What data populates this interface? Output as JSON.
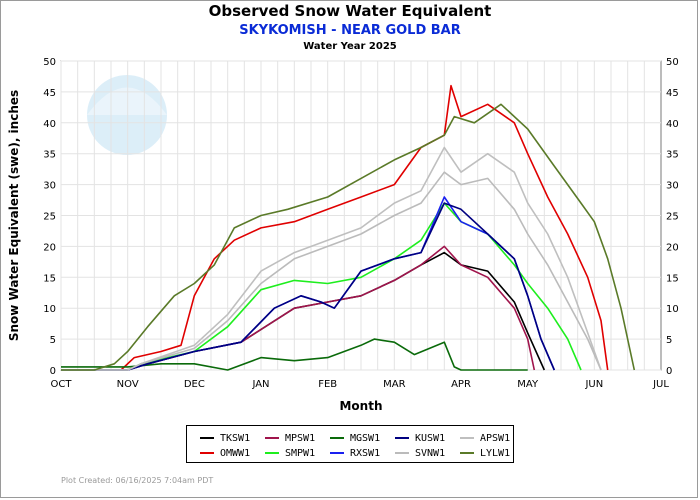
{
  "chart_data": {
    "type": "line",
    "title": "Observed Snow Water Equivalent",
    "subtitle": "SKYKOMISH - NEAR GOLD BAR",
    "subtitle2": "Water Year 2025",
    "xlabel": "Month",
    "ylabel": "Snow Water Equivalent (swe),  inches",
    "categories": [
      "OCT",
      "NOV",
      "DEC",
      "JAN",
      "FEB",
      "MAR",
      "APR",
      "MAY",
      "JUN",
      "JUL"
    ],
    "ylim": [
      0,
      50
    ],
    "yticks": [
      0,
      5,
      10,
      15,
      20,
      25,
      30,
      35,
      40,
      45,
      50
    ],
    "grid": true,
    "legend_position": "bottom",
    "series": [
      {
        "name": "TKSW1",
        "color": "#000000",
        "x": [
          0,
          1,
          1.3,
          2,
          2.7,
          3.5,
          4,
          4.5,
          5,
          5.4,
          5.75,
          6,
          6.4,
          6.8,
          7,
          7.25
        ],
        "y": [
          0,
          0,
          1,
          3,
          4.5,
          10,
          11,
          12,
          14.5,
          17,
          19,
          17,
          16,
          11,
          6,
          0
        ]
      },
      {
        "name": "OMWW1",
        "color": "#e00000",
        "x": [
          0,
          0.9,
          1.1,
          1.5,
          1.8,
          2,
          2.3,
          2.6,
          3,
          3.5,
          4,
          4.5,
          5,
          5.4,
          5.75,
          5.85,
          6,
          6.4,
          6.8,
          7,
          7.3,
          7.6,
          7.9,
          8.1,
          8.2
        ],
        "y": [
          0,
          0,
          2,
          3,
          4,
          12,
          18,
          21,
          23,
          24,
          26,
          28,
          30,
          36,
          38,
          46,
          41,
          43,
          40,
          35,
          28,
          22,
          15,
          8,
          0
        ]
      },
      {
        "name": "MPSW1",
        "color": "#a0144c",
        "x": [
          0,
          1,
          1.3,
          2,
          2.7,
          3.5,
          4,
          4.5,
          5,
          5.4,
          5.75,
          6,
          6.4,
          6.8,
          7,
          7.1
        ],
        "y": [
          0,
          0,
          1,
          3,
          4.5,
          10,
          11,
          12,
          14.5,
          17,
          20,
          17,
          15,
          10,
          5,
          0
        ]
      },
      {
        "name": "SMPW1",
        "color": "#1eee1e",
        "x": [
          0,
          1,
          1.2,
          2,
          2.5,
          3,
          3.5,
          4,
          4.5,
          5,
          5.4,
          5.75,
          6,
          6.4,
          6.8,
          7,
          7.3,
          7.6,
          7.8
        ],
        "y": [
          0,
          0,
          1,
          3,
          7,
          13,
          14.5,
          14,
          15,
          18,
          21,
          27,
          24,
          22,
          17,
          14,
          10,
          5,
          0
        ]
      },
      {
        "name": "MGSW1",
        "color": "#0a6a0a",
        "x": [
          0,
          1,
          1.5,
          2,
          2.5,
          3,
          3.5,
          4,
          4.5,
          4.7,
          5,
          5.3,
          5.75,
          5.9,
          6,
          7
        ],
        "y": [
          0.5,
          0.5,
          1,
          1,
          0,
          2,
          1.5,
          2,
          4,
          5,
          4.5,
          2.5,
          4.5,
          0.5,
          0,
          0
        ]
      },
      {
        "name": "RXSW1",
        "color": "#1a20f0",
        "x": [
          0,
          1,
          1.3,
          2,
          2.7,
          3.2,
          3.6,
          3.9,
          4.1,
          4.5,
          5,
          5.4,
          5.75,
          6,
          6.4,
          6.8,
          7,
          7.2,
          7.4
        ],
        "y": [
          0,
          0,
          1,
          3,
          4.5,
          10,
          12,
          11,
          10,
          16,
          18,
          19,
          28,
          24,
          22,
          18,
          12,
          5,
          0
        ]
      },
      {
        "name": "KUSW1",
        "color": "#000080",
        "x": [
          0,
          1,
          1.3,
          2,
          2.7,
          3.2,
          3.6,
          3.9,
          4.1,
          4.5,
          5,
          5.4,
          5.75,
          6,
          6.4,
          6.8,
          7,
          7.2,
          7.4
        ],
        "y": [
          0,
          0,
          1,
          3,
          4.5,
          10,
          12,
          11,
          10,
          16,
          18,
          19,
          27,
          26,
          22,
          18,
          12,
          5,
          0
        ]
      },
      {
        "name": "SVNW1",
        "color": "#bbbbbb",
        "x": [
          0,
          1,
          1.2,
          2,
          2.5,
          3,
          3.5,
          4,
          4.5,
          5,
          5.4,
          5.75,
          6,
          6.4,
          6.8,
          7,
          7.3,
          7.6,
          7.9,
          8.1
        ],
        "y": [
          0,
          0,
          1,
          3.5,
          8,
          14,
          18,
          20,
          22,
          25,
          27,
          32,
          30,
          31,
          26,
          22,
          17,
          11,
          5,
          0
        ]
      },
      {
        "name": "APSW1",
        "color": "#bfbfbf",
        "x": [
          0,
          1,
          1.2,
          2,
          2.5,
          3,
          3.5,
          4,
          4.5,
          5,
          5.4,
          5.75,
          6,
          6.4,
          6.8,
          7,
          7.3,
          7.6,
          7.9,
          8.1
        ],
        "y": [
          0,
          0,
          1,
          4,
          9,
          16,
          19,
          21,
          23,
          27,
          29,
          36,
          32,
          35,
          32,
          27,
          22,
          15,
          6,
          0
        ]
      },
      {
        "name": "LYLW1",
        "color": "#5a7a28",
        "x": [
          0,
          0.5,
          0.8,
          1,
          1.3,
          1.7,
          2,
          2.3,
          2.6,
          3,
          3.4,
          4,
          4.5,
          5,
          5.4,
          5.75,
          5.9,
          6.2,
          6.6,
          7,
          7.4,
          7.8,
          8,
          8.2,
          8.4,
          8.6
        ],
        "y": [
          0,
          0,
          1,
          3,
          7,
          12,
          14,
          17,
          23,
          25,
          26,
          28,
          31,
          34,
          36,
          38,
          41,
          40,
          43,
          39,
          33,
          27,
          24,
          18,
          10,
          0
        ]
      }
    ]
  },
  "legend": {
    "items": [
      {
        "name": "TKSW1",
        "color": "#000000"
      },
      {
        "name": "MPSW1",
        "color": "#a0144c"
      },
      {
        "name": "MGSW1",
        "color": "#0a6a0a"
      },
      {
        "name": "KUSW1",
        "color": "#000080"
      },
      {
        "name": "APSW1",
        "color": "#bfbfbf"
      },
      {
        "name": "OMWW1",
        "color": "#e00000"
      },
      {
        "name": "SMPW1",
        "color": "#1eee1e"
      },
      {
        "name": "RXSW1",
        "color": "#1a20f0"
      },
      {
        "name": "SVNW1",
        "color": "#bbbbbb"
      },
      {
        "name": "LYLW1",
        "color": "#5a7a28"
      }
    ]
  },
  "footnote": "Plot Created: 06/16/2025 7:04am PDT",
  "colors": {
    "subtitle": "#0a2bd6",
    "watermark": "#d8ecf7"
  }
}
